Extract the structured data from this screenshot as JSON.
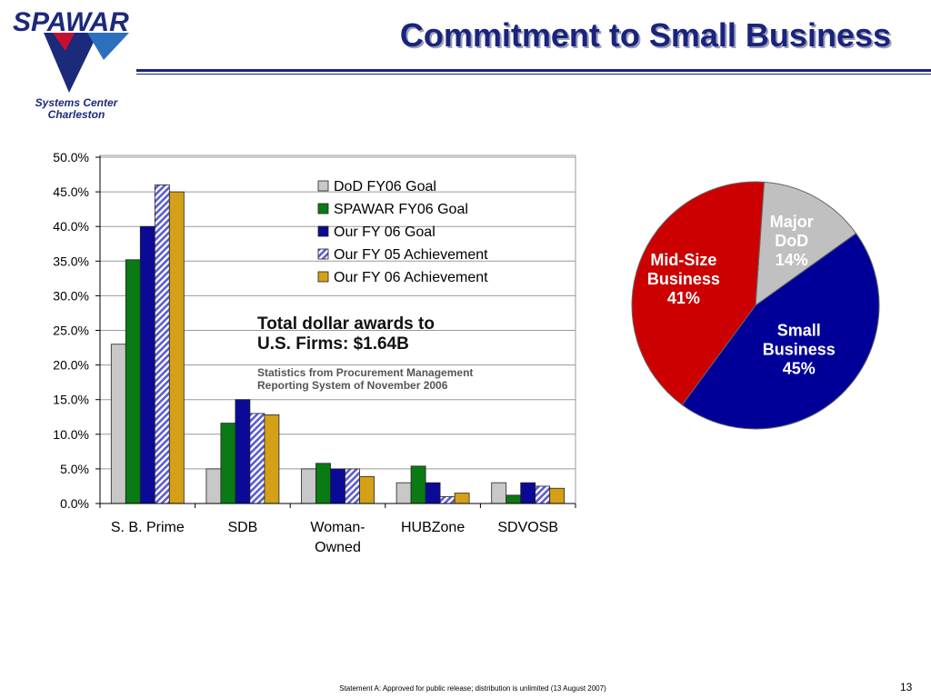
{
  "header": {
    "title": "Commitment to Small Business",
    "logo": {
      "wordmark": "SPAWAR",
      "line1": "Systems Center",
      "line2": "Charleston"
    }
  },
  "colors": {
    "navy": "#1a237e",
    "dod_goal": "#c8c8c8",
    "spawar_goal": "#0a7a14",
    "our_goal": "#0a0a96",
    "fy05": "#5b5bd6",
    "fy06": "#d4a017",
    "pie_major": "#c0c0c0",
    "pie_small": "#000099",
    "pie_mid": "#cc0000"
  },
  "annotation": {
    "line1": "Total dollar awards to",
    "line2": "U.S. Firms:  $1.64B",
    "note_line1": "Statistics from Procurement Management",
    "note_line2": "Reporting System of November 2006"
  },
  "footer": {
    "statement": "Statement A:  Approved for public release; distribution is unlimited (13 August 2007)",
    "page_number": "13"
  },
  "chart_data": [
    {
      "type": "bar",
      "categories": [
        "S. B. Prime",
        "SDB",
        "Woman-Owned",
        "HUBZone",
        "SDVOSB"
      ],
      "category_lines": [
        [
          "S. B. Prime"
        ],
        [
          "SDB"
        ],
        [
          "Woman-",
          "Owned"
        ],
        [
          "HUBZone"
        ],
        [
          "SDVOSB"
        ]
      ],
      "series": [
        {
          "name": "DoD FY06 Goal",
          "values": [
            23.0,
            5.0,
            5.0,
            3.0,
            3.0
          ],
          "color": "#c8c8c8",
          "pattern": "solid"
        },
        {
          "name": "SPAWAR FY06 Goal",
          "values": [
            35.2,
            11.6,
            5.8,
            5.4,
            1.2
          ],
          "color": "#0a7a14",
          "pattern": "solid"
        },
        {
          "name": "Our FY 06 Goal",
          "values": [
            40.0,
            15.0,
            5.0,
            3.0,
            3.0
          ],
          "color": "#0a0a96",
          "pattern": "solid"
        },
        {
          "name": "Our FY 05 Achievement",
          "values": [
            46.0,
            13.0,
            5.0,
            1.0,
            2.5
          ],
          "color": "#5b5bd6",
          "pattern": "hatched"
        },
        {
          "name": "Our FY 06 Achievement",
          "values": [
            45.0,
            12.8,
            3.9,
            1.5,
            2.2
          ],
          "color": "#d4a017",
          "pattern": "solid"
        }
      ],
      "ylim": [
        0,
        50
      ],
      "yticks": [
        "0.0%",
        "5.0%",
        "10.0%",
        "15.0%",
        "20.0%",
        "25.0%",
        "30.0%",
        "35.0%",
        "40.0%",
        "45.0%",
        "50.0%"
      ],
      "grid": true,
      "legend_position": "top-right",
      "title": "",
      "xlabel": "",
      "ylabel": ""
    },
    {
      "type": "pie",
      "slices": [
        {
          "label_lines": [
            "Major",
            "DoD",
            "14%"
          ],
          "label": "Major DoD",
          "value": 14,
          "color": "#c0c0c0",
          "text_color": "#ffffff"
        },
        {
          "label_lines": [
            "Small",
            "Business",
            "45%"
          ],
          "label": "Small Business",
          "value": 45,
          "color": "#000099",
          "text_color": "#ffffff"
        },
        {
          "label_lines": [
            "Mid-Size",
            "Business",
            "41%"
          ],
          "label": "Mid-Size Business",
          "value": 41,
          "color": "#cc0000",
          "text_color": "#ffffff"
        }
      ]
    }
  ]
}
